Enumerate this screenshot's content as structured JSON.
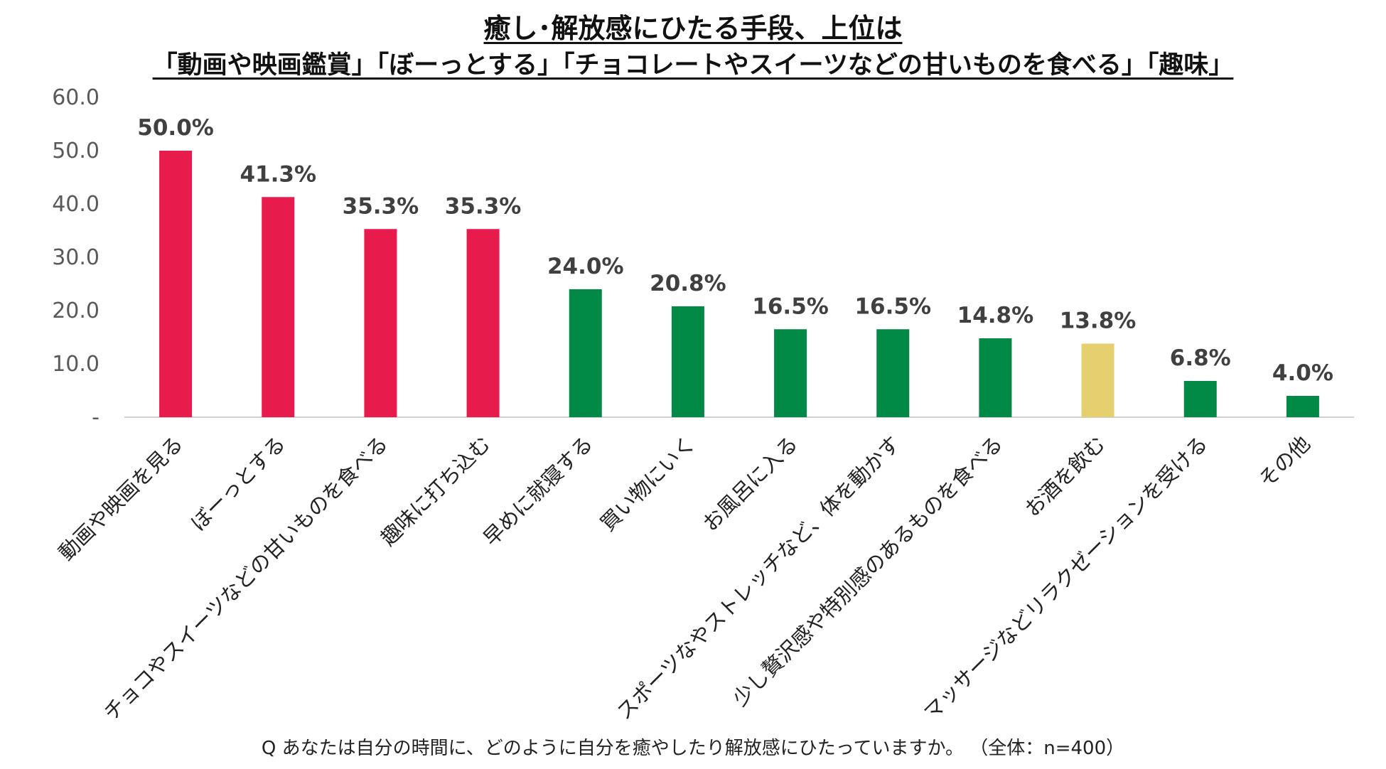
{
  "title": {
    "line1": "癒し･解放感にひたる手段、上位は",
    "line2": "「動画や映画鑑賞」「ぼーっとする」「チョコレートやスイーツなどの甘いものを食べる」「趣味」"
  },
  "chart_data": {
    "type": "bar",
    "title": "癒し･解放感にひたる手段、上位は「動画や映画鑑賞」「ぼーっとする」「チョコレートやスイーツなどの甘いものを食べる」「趣味」",
    "xlabel": "",
    "ylabel": "",
    "ylim": [
      0,
      60
    ],
    "yticks": [
      0,
      10,
      20,
      30,
      40,
      50,
      60
    ],
    "ytick_labels": [
      "-",
      "10.0",
      "20.0",
      "30.0",
      "40.0",
      "50.0",
      "60.0"
    ],
    "grid": false,
    "legend": "none",
    "categories": [
      "動画や映画を見る",
      "ぼーっとする",
      "チョコやスイーツなどの甘いものを食べる",
      "趣味に打ち込む",
      "早めに就寝する",
      "買い物にいく",
      "お風呂に入る",
      "スポーツなやストレッチなど、体を動かす",
      "少し贅沢感や特別感のあるものを食べる",
      "お酒を飲む",
      "マッサージなどリラクゼーションを受ける",
      "その他"
    ],
    "values": [
      50.0,
      41.3,
      35.3,
      35.3,
      24.0,
      20.8,
      16.5,
      16.5,
      14.8,
      13.8,
      6.8,
      4.0
    ],
    "value_labels": [
      "50.0%",
      "41.3%",
      "35.3%",
      "35.3%",
      "24.0%",
      "20.8%",
      "16.5%",
      "16.5%",
      "14.8%",
      "13.8%",
      "6.8%",
      "4.0%"
    ],
    "bar_colors": [
      "#e81c4c",
      "#e81c4c",
      "#e81c4c",
      "#e81c4c",
      "#008a45",
      "#008a45",
      "#008a45",
      "#008a45",
      "#008a45",
      "#e6cf6e",
      "#008a45",
      "#008a45"
    ]
  },
  "colors": {
    "axis_line": "#d0d0d0",
    "tick_text": "#595959",
    "value_text": "#404040",
    "category_text": "#222222"
  },
  "footnote": "Q あなたは自分の時間に、どのように自分を癒やしたり解放感にひたっていますか。 （全体：n=400）"
}
